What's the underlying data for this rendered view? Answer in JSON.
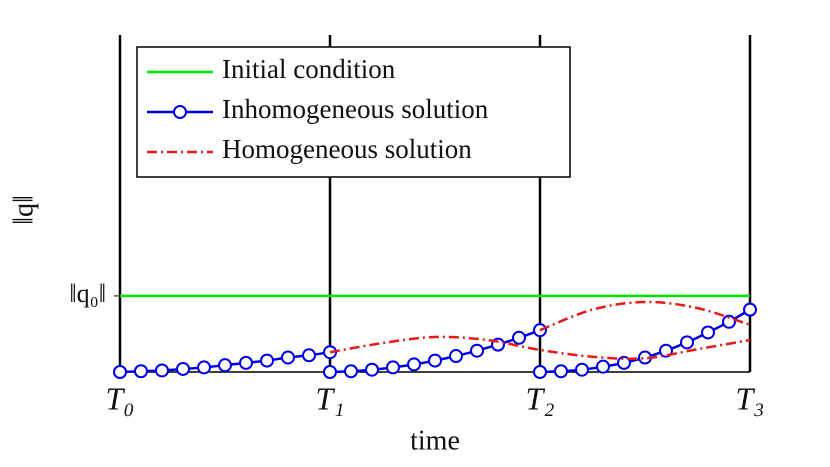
{
  "chart_data": {
    "type": "line",
    "xlabel": "time",
    "ylabel": "‖q‖",
    "xlim": [
      0,
      3
    ],
    "ylim": [
      0,
      4.43
    ],
    "xticks": [
      {
        "value": 0,
        "label": "T₀"
      },
      {
        "value": 1,
        "label": "T₁"
      },
      {
        "value": 2,
        "label": "T₂"
      },
      {
        "value": 3,
        "label": "T₃"
      }
    ],
    "yticks": [
      {
        "value": 1,
        "label": "‖q₀‖"
      }
    ],
    "xgrid": true,
    "legend": "upper left",
    "series": [
      {
        "name": "Initial condition",
        "color": "#00e600",
        "style": "solid",
        "x": [
          0,
          3
        ],
        "values": [
          1,
          1
        ]
      },
      {
        "name": "Inhomogeneous solution",
        "color": "#0000e6",
        "style": "solid",
        "marker": "circle",
        "x": [
          0,
          0.1,
          0.2,
          0.3,
          0.4,
          0.5,
          0.6,
          0.7,
          0.8,
          0.9,
          1,
          null,
          1,
          1.1,
          1.2,
          1.3,
          1.4,
          1.5,
          1.6,
          1.7,
          1.8,
          1.9,
          2,
          null,
          2,
          2.1,
          2.2,
          2.3,
          2.4,
          2.5,
          2.6,
          2.7,
          2.8,
          2.9,
          3
        ],
        "values": [
          0,
          0.01,
          0.02,
          0.04,
          0.06,
          0.09,
          0.12,
          0.15,
          0.19,
          0.22,
          0.26,
          null,
          0,
          0.01,
          0.03,
          0.06,
          0.1,
          0.15,
          0.21,
          0.28,
          0.36,
          0.45,
          0.55,
          null,
          0,
          0.01,
          0.03,
          0.07,
          0.12,
          0.19,
          0.28,
          0.39,
          0.52,
          0.66,
          0.82
        ]
      },
      {
        "name": "Homogeneous solution",
        "color": "#e61a1a",
        "style": "dashdot",
        "x": [
          1,
          1.25,
          1.5,
          1.75,
          2,
          2.25,
          2.5,
          2.75,
          3,
          null,
          2,
          2.25,
          2.5,
          2.75,
          3
        ],
        "values": [
          0.26,
          0.38,
          0.46,
          0.42,
          0.29,
          0.2,
          0.18,
          0.3,
          0.42,
          null,
          0.55,
          0.82,
          0.92,
          0.84,
          0.62
        ]
      }
    ]
  }
}
